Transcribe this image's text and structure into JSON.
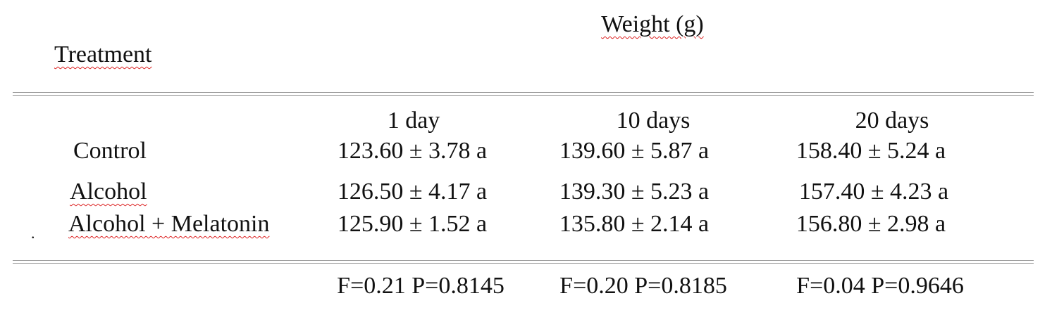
{
  "header": {
    "title": "Weight (g)",
    "row_label": "Treatment"
  },
  "table": {
    "columns": [
      "1 day",
      "10 days",
      "20 days"
    ],
    "rows": [
      [
        "Control",
        "123.60 ± 3.78 a",
        "139.60 ± 5.87 a",
        "158.40 ± 5.24 a"
      ],
      [
        "Alcohol",
        "126.50 ± 4.17 a",
        "139.30 ± 5.23 a",
        "157.40 ± 4.23 a"
      ],
      [
        "Alcohol + Melatonin",
        "125.90 ± 1.52 a",
        "135.80 ± 2.14 a",
        "156.80 ± 2.98 a"
      ]
    ],
    "stats": [
      "F=0.21 P=0.8145",
      "F=0.20 P=0.8185",
      "F=0.04 P=0.9646"
    ]
  },
  "stray_mark": "."
}
